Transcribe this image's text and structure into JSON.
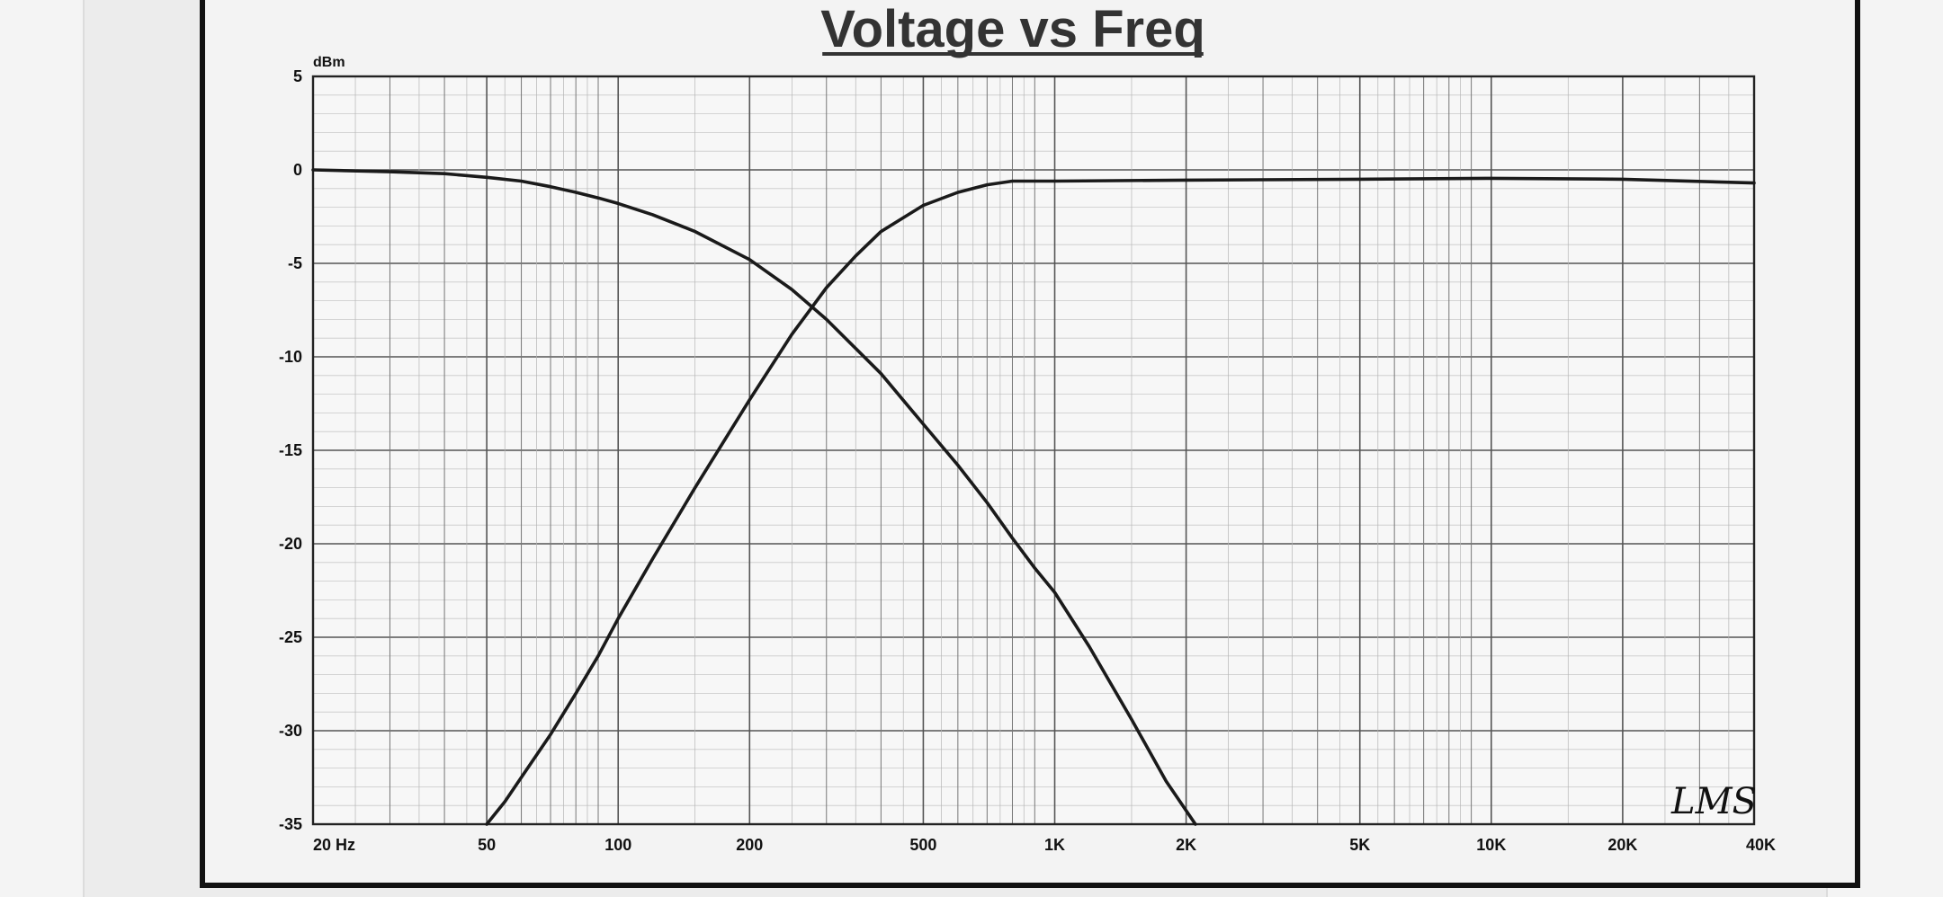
{
  "chart_data": {
    "type": "line",
    "title": "Voltage vs Freq",
    "ylabel": "dBm",
    "xlabel": "",
    "x_scale": "log",
    "xlim": [
      20,
      40000
    ],
    "ylim": [
      -35,
      5
    ],
    "grid": true,
    "x_ticks": [
      {
        "value": 20,
        "label": "20  Hz"
      },
      {
        "value": 50,
        "label": "50"
      },
      {
        "value": 100,
        "label": "100"
      },
      {
        "value": 200,
        "label": "200"
      },
      {
        "value": 500,
        "label": "500"
      },
      {
        "value": 1000,
        "label": "1K"
      },
      {
        "value": 2000,
        "label": "2K"
      },
      {
        "value": 5000,
        "label": "5K"
      },
      {
        "value": 10000,
        "label": "10K"
      },
      {
        "value": 20000,
        "label": "20K"
      },
      {
        "value": 40000,
        "label": "40K"
      }
    ],
    "y_ticks": [
      5,
      0,
      -5,
      -10,
      -15,
      -20,
      -25,
      -30,
      -35
    ],
    "series": [
      {
        "points": [
          [
            20,
            0
          ],
          [
            30,
            -0.1
          ],
          [
            40,
            -0.2
          ],
          [
            50,
            -0.4
          ],
          [
            60,
            -0.6
          ],
          [
            70,
            -0.9
          ],
          [
            80,
            -1.2
          ],
          [
            90,
            -1.5
          ],
          [
            100,
            -1.8
          ],
          [
            120,
            -2.4
          ],
          [
            150,
            -3.3
          ],
          [
            200,
            -4.8
          ],
          [
            250,
            -6.4
          ],
          [
            300,
            -8.0
          ],
          [
            400,
            -10.9
          ],
          [
            500,
            -13.6
          ],
          [
            600,
            -15.8
          ],
          [
            700,
            -17.8
          ],
          [
            800,
            -19.7
          ],
          [
            900,
            -21.3
          ],
          [
            1000,
            -22.6
          ],
          [
            1200,
            -25.5
          ],
          [
            1500,
            -29.4
          ],
          [
            1800,
            -32.7
          ],
          [
            2100,
            -35
          ]
        ]
      },
      {
        "points": [
          [
            50,
            -35
          ],
          [
            55,
            -33.8
          ],
          [
            60,
            -32.5
          ],
          [
            70,
            -30.2
          ],
          [
            80,
            -28.0
          ],
          [
            90,
            -26.0
          ],
          [
            100,
            -24.0
          ],
          [
            120,
            -20.8
          ],
          [
            150,
            -17.0
          ],
          [
            200,
            -12.3
          ],
          [
            250,
            -8.8
          ],
          [
            300,
            -6.3
          ],
          [
            350,
            -4.6
          ],
          [
            400,
            -3.3
          ],
          [
            500,
            -1.9
          ],
          [
            600,
            -1.2
          ],
          [
            700,
            -0.8
          ],
          [
            800,
            -0.6
          ],
          [
            1000,
            -0.6
          ],
          [
            2000,
            -0.55
          ],
          [
            5000,
            -0.5
          ],
          [
            10000,
            -0.45
          ],
          [
            20000,
            -0.5
          ],
          [
            40000,
            -0.7
          ]
        ]
      }
    ]
  },
  "signature": "LMS"
}
